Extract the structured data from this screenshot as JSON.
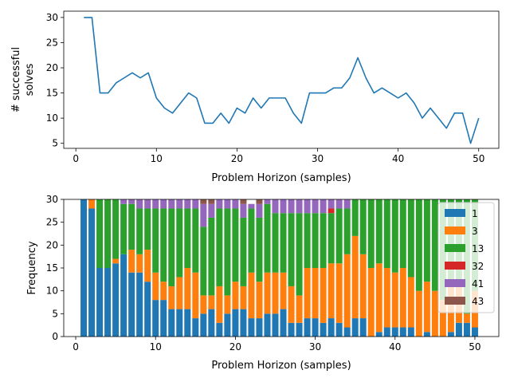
{
  "chart_data": [
    {
      "type": "line",
      "xlabel": "Problem Horizon (samples)",
      "ylabel_lines": [
        "# successful",
        "solves"
      ],
      "xlim": [
        -1.5,
        52.5
      ],
      "ylim": [
        4.0,
        31.25
      ],
      "xticks": [
        0,
        10,
        20,
        30,
        40,
        50
      ],
      "yticks": [
        5,
        10,
        15,
        20,
        25,
        30
      ],
      "color": "#1f77b4",
      "x": [
        1,
        2,
        3,
        4,
        5,
        6,
        7,
        8,
        9,
        10,
        11,
        12,
        13,
        14,
        15,
        16,
        17,
        18,
        19,
        20,
        21,
        22,
        23,
        24,
        25,
        26,
        27,
        28,
        29,
        30,
        31,
        32,
        33,
        34,
        35,
        36,
        37,
        38,
        39,
        40,
        41,
        42,
        43,
        44,
        45,
        46,
        47,
        48,
        49,
        50
      ],
      "y": [
        30,
        30,
        15,
        15,
        17,
        18,
        19,
        18,
        19,
        14,
        12,
        11,
        13,
        15,
        14,
        9,
        9,
        11,
        9,
        12,
        11,
        14,
        12,
        14,
        14,
        14,
        11,
        9,
        15,
        15,
        15,
        16,
        16,
        18,
        22,
        18,
        15,
        16,
        15,
        14,
        15,
        13,
        10,
        12,
        10,
        8,
        11,
        11,
        5,
        10
      ]
    },
    {
      "type": "bar",
      "stacked": true,
      "xlabel": "Problem Horizon (samples)",
      "ylabel": "Frequency",
      "xlim": [
        -1.5,
        53.0
      ],
      "ylim": [
        0,
        30
      ],
      "xticks": [
        0,
        10,
        20,
        30,
        40,
        50
      ],
      "yticks": [
        0,
        5,
        10,
        15,
        20,
        25,
        30
      ],
      "legend_position": "top-right",
      "x": [
        1,
        2,
        3,
        4,
        5,
        6,
        7,
        8,
        9,
        10,
        11,
        12,
        13,
        14,
        15,
        16,
        17,
        18,
        19,
        20,
        21,
        22,
        23,
        24,
        25,
        26,
        27,
        28,
        29,
        30,
        31,
        32,
        33,
        34,
        35,
        36,
        37,
        38,
        39,
        40,
        41,
        42,
        43,
        44,
        45,
        46,
        47,
        48,
        49,
        50
      ],
      "series": [
        {
          "name": "1",
          "color": "#1f77b4",
          "values": [
            30,
            28,
            15,
            15,
            16,
            18,
            14,
            14,
            12,
            8,
            8,
            6,
            6,
            6,
            4,
            5,
            6,
            3,
            5,
            6,
            6,
            4,
            4,
            5,
            5,
            6,
            3,
            3,
            4,
            4,
            3,
            4,
            3,
            2,
            4,
            4,
            0,
            1,
            2,
            2,
            2,
            2,
            0,
            1,
            0,
            0,
            1,
            3,
            3,
            2
          ]
        },
        {
          "name": "3",
          "color": "#ff7f0e",
          "values": [
            0,
            2,
            0,
            0,
            1,
            0,
            5,
            4,
            7,
            6,
            4,
            5,
            7,
            9,
            10,
            4,
            3,
            8,
            4,
            6,
            5,
            10,
            8,
            9,
            9,
            8,
            8,
            6,
            11,
            11,
            12,
            12,
            13,
            16,
            18,
            14,
            15,
            15,
            13,
            12,
            13,
            11,
            10,
            11,
            10,
            8,
            10,
            8,
            2,
            8
          ]
        },
        {
          "name": "13",
          "color": "#2ca02c",
          "values": [
            0,
            0,
            15,
            15,
            13,
            11,
            10,
            10,
            9,
            14,
            16,
            17,
            15,
            13,
            14,
            15,
            17,
            17,
            19,
            16,
            15,
            14,
            14,
            15,
            13,
            13,
            16,
            18,
            12,
            12,
            12,
            11,
            12,
            10,
            8,
            12,
            15,
            14,
            15,
            16,
            15,
            17,
            20,
            18,
            20,
            22,
            19,
            19,
            25,
            20
          ]
        },
        {
          "name": "32",
          "color": "#d62728",
          "values": [
            0,
            0,
            0,
            0,
            0,
            0,
            0,
            0,
            0,
            0,
            0,
            0,
            0,
            0,
            0,
            0,
            0,
            0,
            0,
            0,
            0,
            0,
            0,
            0,
            0,
            0,
            0,
            0,
            0,
            0,
            0,
            1,
            0,
            0,
            0,
            0,
            0,
            0,
            0,
            0,
            0,
            0,
            0,
            0,
            0,
            0,
            0,
            0,
            0,
            0
          ]
        },
        {
          "name": "41",
          "color": "#9467bd",
          "values": [
            0,
            0,
            0,
            0,
            0,
            1,
            1,
            2,
            2,
            2,
            2,
            2,
            2,
            2,
            2,
            5,
            3,
            2,
            2,
            2,
            3,
            1,
            3,
            1,
            3,
            3,
            3,
            3,
            3,
            3,
            3,
            2,
            2,
            2,
            0,
            0,
            0,
            0,
            0,
            0,
            0,
            0,
            0,
            0,
            0,
            0,
            0,
            0,
            0,
            0
          ]
        },
        {
          "name": "43",
          "color": "#8c564b",
          "values": [
            0,
            0,
            0,
            0,
            0,
            0,
            0,
            0,
            0,
            0,
            0,
            0,
            0,
            0,
            0,
            1,
            1,
            0,
            0,
            0,
            1,
            0,
            1,
            0,
            0,
            0,
            0,
            0,
            0,
            0,
            0,
            0,
            0,
            0,
            0,
            0,
            0,
            0,
            0,
            0,
            0,
            0,
            0,
            0,
            0,
            0,
            0,
            0,
            0,
            0
          ]
        }
      ]
    }
  ]
}
